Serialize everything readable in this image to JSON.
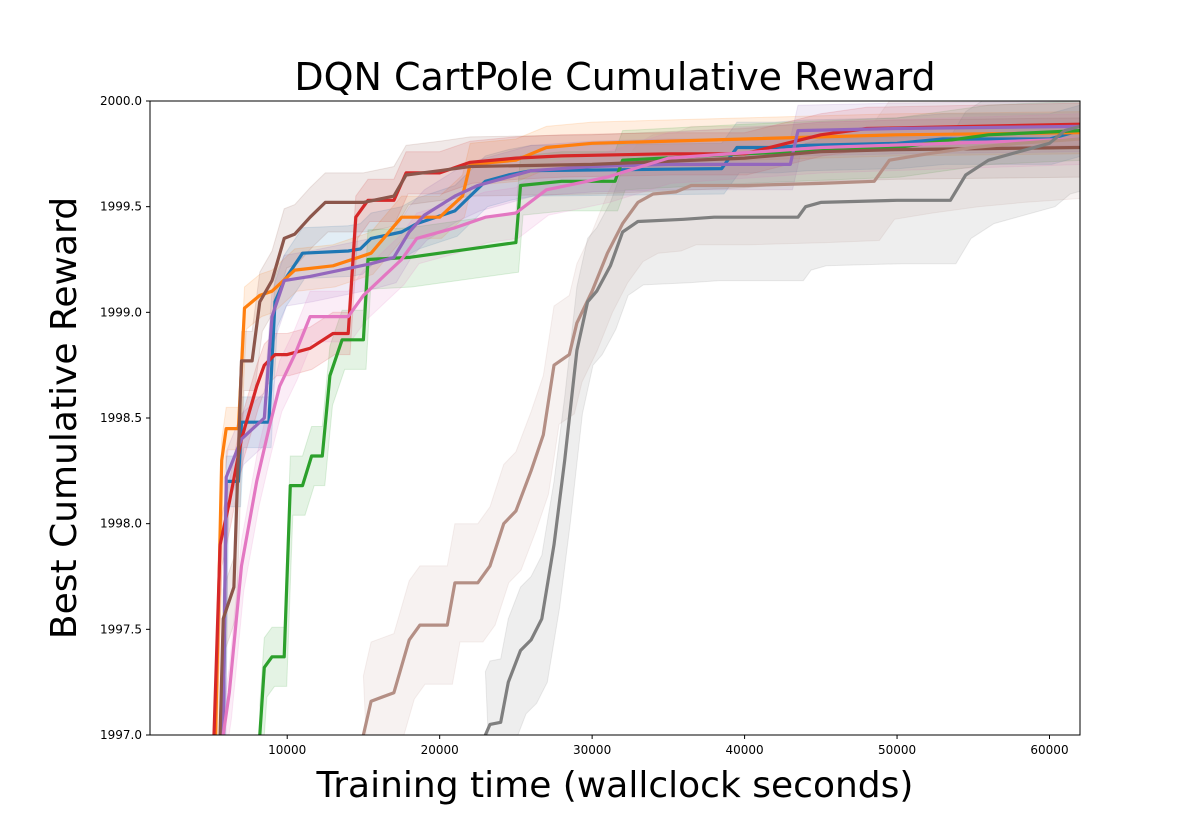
{
  "chart_data": {
    "type": "line",
    "title": "DQN CartPole Cumulative Reward",
    "xlabel": "Training time (wallclock seconds)",
    "ylabel": "Best Cumulative Reward",
    "xlim": [
      1000,
      62000
    ],
    "ylim": [
      1997.0,
      2000.0
    ],
    "xticks": [
      10000,
      20000,
      30000,
      40000,
      50000,
      60000
    ],
    "yticks": [
      1997.0,
      1997.5,
      1998.0,
      1998.5,
      1999.0,
      1999.5,
      2000.0
    ],
    "xtick_labels": [
      "10000",
      "20000",
      "30000",
      "40000",
      "50000",
      "60000"
    ],
    "ytick_labels": [
      "1997.0",
      "1997.5",
      "1998.0",
      "1998.5",
      "1999.0",
      "1999.5",
      "2000.0"
    ],
    "grid": false,
    "legend": "none",
    "series": [
      {
        "color": "#1f77b4",
        "band_width": 0.12,
        "points": [
          [
            5800,
            1997.0
          ],
          [
            6000,
            1998.2
          ],
          [
            6800,
            1998.2
          ],
          [
            7000,
            1998.48
          ],
          [
            8800,
            1998.48
          ],
          [
            9200,
            1999.05
          ],
          [
            9800,
            1999.15
          ],
          [
            11000,
            1999.28
          ],
          [
            14000,
            1999.29
          ],
          [
            14800,
            1999.3
          ],
          [
            15500,
            1999.35
          ],
          [
            17500,
            1999.38
          ],
          [
            18500,
            1999.42
          ],
          [
            21000,
            1999.48
          ],
          [
            23000,
            1999.62
          ],
          [
            24500,
            1999.65
          ],
          [
            26000,
            1999.67
          ],
          [
            38500,
            1999.68
          ],
          [
            39500,
            1999.78
          ],
          [
            42000,
            1999.78
          ],
          [
            44000,
            1999.79
          ],
          [
            50000,
            1999.8
          ],
          [
            53000,
            1999.82
          ],
          [
            60000,
            1999.82
          ],
          [
            62000,
            1999.86
          ]
        ]
      },
      {
        "color": "#ff7f0e",
        "band_width": 0.1,
        "points": [
          [
            5300,
            1997.0
          ],
          [
            5700,
            1998.3
          ],
          [
            6000,
            1998.45
          ],
          [
            6800,
            1998.45
          ],
          [
            7200,
            1999.02
          ],
          [
            8200,
            1999.08
          ],
          [
            9000,
            1999.1
          ],
          [
            10500,
            1999.2
          ],
          [
            13000,
            1999.22
          ],
          [
            15500,
            1999.28
          ],
          [
            17500,
            1999.45
          ],
          [
            20000,
            1999.45
          ],
          [
            21500,
            1999.55
          ],
          [
            22000,
            1999.7
          ],
          [
            25000,
            1999.72
          ],
          [
            27000,
            1999.78
          ],
          [
            30000,
            1999.8
          ],
          [
            40000,
            1999.82
          ],
          [
            50000,
            1999.84
          ],
          [
            62000,
            1999.85
          ]
        ]
      },
      {
        "color": "#2ca02c",
        "band_width": 0.14,
        "points": [
          [
            8200,
            1997.0
          ],
          [
            8500,
            1997.32
          ],
          [
            9000,
            1997.37
          ],
          [
            9800,
            1997.37
          ],
          [
            10200,
            1998.18
          ],
          [
            11000,
            1998.18
          ],
          [
            11600,
            1998.32
          ],
          [
            12300,
            1998.32
          ],
          [
            12800,
            1998.7
          ],
          [
            13600,
            1998.87
          ],
          [
            15000,
            1998.87
          ],
          [
            15300,
            1999.25
          ],
          [
            18000,
            1999.26
          ],
          [
            22000,
            1999.3
          ],
          [
            25000,
            1999.33
          ],
          [
            25300,
            1999.6
          ],
          [
            28000,
            1999.62
          ],
          [
            31500,
            1999.62
          ],
          [
            32000,
            1999.72
          ],
          [
            40000,
            1999.75
          ],
          [
            50000,
            1999.78
          ],
          [
            56000,
            1999.84
          ],
          [
            62000,
            1999.86
          ]
        ]
      },
      {
        "color": "#d62728",
        "band_width": 0.1,
        "points": [
          [
            5200,
            1997.0
          ],
          [
            5600,
            1997.9
          ],
          [
            6200,
            1998.1
          ],
          [
            7000,
            1998.4
          ],
          [
            8000,
            1998.65
          ],
          [
            8500,
            1998.75
          ],
          [
            9200,
            1998.8
          ],
          [
            10000,
            1998.8
          ],
          [
            11500,
            1998.83
          ],
          [
            13000,
            1998.9
          ],
          [
            14000,
            1998.9
          ],
          [
            14500,
            1999.45
          ],
          [
            15300,
            1999.53
          ],
          [
            17000,
            1999.53
          ],
          [
            17800,
            1999.66
          ],
          [
            20000,
            1999.66
          ],
          [
            22000,
            1999.71
          ],
          [
            25000,
            1999.73
          ],
          [
            28000,
            1999.74
          ],
          [
            35000,
            1999.75
          ],
          [
            40000,
            1999.75
          ],
          [
            45000,
            1999.84
          ],
          [
            48000,
            1999.87
          ],
          [
            55000,
            1999.88
          ],
          [
            62000,
            1999.89
          ]
        ]
      },
      {
        "color": "#9467bd",
        "band_width": 0.12,
        "points": [
          [
            5800,
            1997.0
          ],
          [
            6000,
            1998.22
          ],
          [
            7000,
            1998.4
          ],
          [
            8500,
            1998.5
          ],
          [
            9000,
            1998.98
          ],
          [
            9800,
            1999.15
          ],
          [
            11500,
            1999.17
          ],
          [
            13500,
            1999.2
          ],
          [
            15500,
            1999.23
          ],
          [
            17000,
            1999.26
          ],
          [
            18000,
            1999.38
          ],
          [
            19000,
            1999.46
          ],
          [
            21000,
            1999.55
          ],
          [
            22500,
            1999.6
          ],
          [
            24000,
            1999.63
          ],
          [
            26000,
            1999.67
          ],
          [
            30000,
            1999.69
          ],
          [
            35000,
            1999.7
          ],
          [
            43000,
            1999.7
          ],
          [
            43500,
            1999.86
          ],
          [
            50000,
            1999.87
          ],
          [
            62000,
            1999.88
          ]
        ]
      },
      {
        "color": "#8c564b",
        "band_width": 0.14,
        "points": [
          [
            5600,
            1997.0
          ],
          [
            5800,
            1997.55
          ],
          [
            6500,
            1997.7
          ],
          [
            7000,
            1998.77
          ],
          [
            7700,
            1998.77
          ],
          [
            8200,
            1999.05
          ],
          [
            9000,
            1999.15
          ],
          [
            9800,
            1999.35
          ],
          [
            10500,
            1999.37
          ],
          [
            11500,
            1999.45
          ],
          [
            12500,
            1999.52
          ],
          [
            15000,
            1999.52
          ],
          [
            17000,
            1999.55
          ],
          [
            17800,
            1999.65
          ],
          [
            20000,
            1999.67
          ],
          [
            22000,
            1999.69
          ],
          [
            30000,
            1999.7
          ],
          [
            40000,
            1999.73
          ],
          [
            45000,
            1999.76
          ],
          [
            50000,
            1999.77
          ],
          [
            62000,
            1999.78
          ]
        ]
      },
      {
        "color": "#e377c2",
        "band_width": 0.12,
        "points": [
          [
            5800,
            1997.0
          ],
          [
            6200,
            1997.2
          ],
          [
            7000,
            1997.8
          ],
          [
            8000,
            1998.2
          ],
          [
            8800,
            1998.45
          ],
          [
            9500,
            1998.65
          ],
          [
            10500,
            1998.8
          ],
          [
            11500,
            1998.98
          ],
          [
            14000,
            1998.98
          ],
          [
            15000,
            1999.08
          ],
          [
            17500,
            1999.25
          ],
          [
            18500,
            1999.35
          ],
          [
            21000,
            1999.4
          ],
          [
            23000,
            1999.45
          ],
          [
            25000,
            1999.47
          ],
          [
            27000,
            1999.58
          ],
          [
            31000,
            1999.64
          ],
          [
            35000,
            1999.73
          ],
          [
            45000,
            1999.78
          ],
          [
            62000,
            1999.82
          ]
        ]
      },
      {
        "color": "#c49c94",
        "edge_color": "#b48f85",
        "band_width": 0.28,
        "points": [
          [
            15000,
            1997.0
          ],
          [
            15500,
            1997.16
          ],
          [
            17000,
            1997.2
          ],
          [
            18000,
            1997.45
          ],
          [
            18700,
            1997.52
          ],
          [
            20500,
            1997.52
          ],
          [
            21000,
            1997.72
          ],
          [
            22500,
            1997.72
          ],
          [
            23300,
            1997.8
          ],
          [
            24200,
            1998.0
          ],
          [
            25000,
            1998.06
          ],
          [
            26000,
            1998.25
          ],
          [
            26800,
            1998.42
          ],
          [
            27500,
            1998.75
          ],
          [
            28500,
            1998.8
          ],
          [
            29000,
            1998.95
          ],
          [
            30000,
            1999.1
          ],
          [
            31000,
            1999.28
          ],
          [
            32000,
            1999.42
          ],
          [
            33000,
            1999.52
          ],
          [
            34000,
            1999.56
          ],
          [
            35500,
            1999.57
          ],
          [
            36500,
            1999.6
          ],
          [
            40000,
            1999.6
          ],
          [
            45000,
            1999.61
          ],
          [
            48500,
            1999.62
          ],
          [
            49500,
            1999.72
          ],
          [
            52000,
            1999.75
          ],
          [
            55000,
            1999.78
          ],
          [
            58000,
            1999.8
          ],
          [
            62000,
            1999.82
          ]
        ]
      },
      {
        "color": "#7f7f7f",
        "band_width": 0.3,
        "points": [
          [
            23000,
            1997.0
          ],
          [
            23300,
            1997.05
          ],
          [
            24000,
            1997.06
          ],
          [
            24500,
            1997.25
          ],
          [
            25300,
            1997.4
          ],
          [
            26000,
            1997.45
          ],
          [
            26700,
            1997.55
          ],
          [
            27500,
            1997.9
          ],
          [
            28200,
            1998.3
          ],
          [
            29000,
            1998.82
          ],
          [
            29700,
            1999.05
          ],
          [
            30300,
            1999.1
          ],
          [
            31200,
            1999.22
          ],
          [
            32000,
            1999.38
          ],
          [
            33000,
            1999.43
          ],
          [
            36000,
            1999.44
          ],
          [
            38000,
            1999.45
          ],
          [
            43500,
            1999.45
          ],
          [
            44000,
            1999.5
          ],
          [
            45000,
            1999.52
          ],
          [
            50000,
            1999.53
          ],
          [
            53500,
            1999.53
          ],
          [
            54500,
            1999.65
          ],
          [
            56000,
            1999.72
          ],
          [
            58000,
            1999.76
          ],
          [
            60000,
            1999.8
          ],
          [
            61000,
            1999.86
          ],
          [
            62000,
            1999.88
          ]
        ]
      }
    ]
  }
}
